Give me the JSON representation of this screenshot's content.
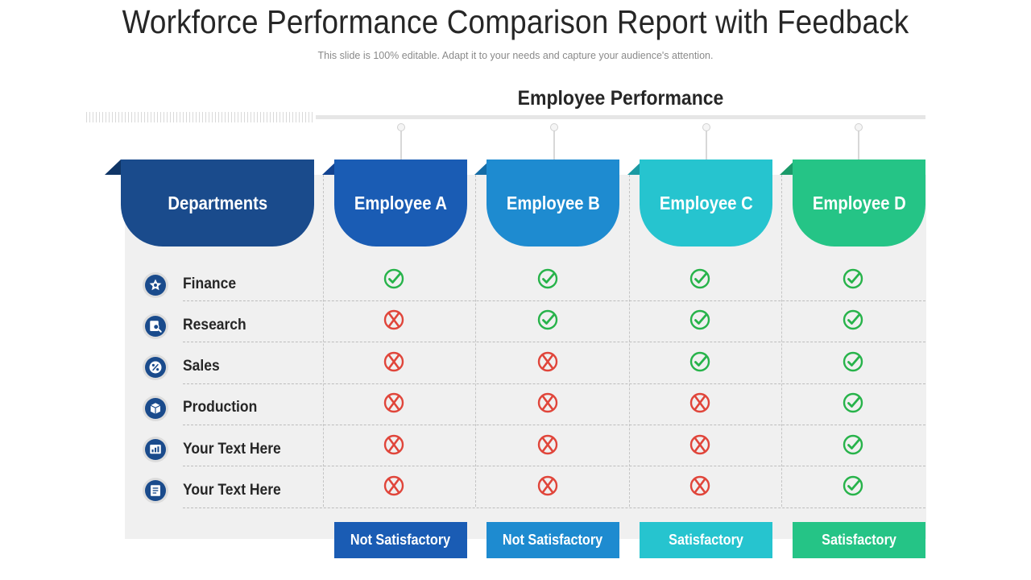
{
  "title": "Workforce Performance Comparison Report with Feedback",
  "subtitle": "This slide is 100% editable. Adapt it to your needs and capture your audience's attention.",
  "performance_label": "Employee Performance",
  "departments_header": "Departments",
  "colors": {
    "departments": "#1a4b8c",
    "employee_a": "#1a5cb4",
    "employee_b": "#1e8bd0",
    "employee_c": "#26c4cf",
    "employee_d": "#25c486",
    "check": "#27b34a",
    "cross": "#e0453a"
  },
  "employees": [
    {
      "name": "Employee A",
      "rating": "Not Satisfactory"
    },
    {
      "name": "Employee B",
      "rating": "Not Satisfactory"
    },
    {
      "name": "Employee C",
      "rating": "Satisfactory"
    },
    {
      "name": "Employee D",
      "rating": "Satisfactory"
    }
  ],
  "rows": [
    {
      "label": "Finance",
      "icon": "finance-star-icon",
      "marks": [
        "check",
        "check",
        "check",
        "check"
      ]
    },
    {
      "label": "Research",
      "icon": "research-magnifier-icon",
      "marks": [
        "cross",
        "check",
        "check",
        "check"
      ]
    },
    {
      "label": "Sales",
      "icon": "sales-percent-icon",
      "marks": [
        "cross",
        "cross",
        "check",
        "check"
      ]
    },
    {
      "label": "Production",
      "icon": "production-box-icon",
      "marks": [
        "cross",
        "cross",
        "cross",
        "check"
      ]
    },
    {
      "label": "Your Text Here",
      "icon": "chart-icon",
      "marks": [
        "cross",
        "cross",
        "cross",
        "check"
      ]
    },
    {
      "label": "Your Text Here",
      "icon": "document-icon",
      "marks": [
        "cross",
        "cross",
        "cross",
        "check"
      ]
    }
  ]
}
